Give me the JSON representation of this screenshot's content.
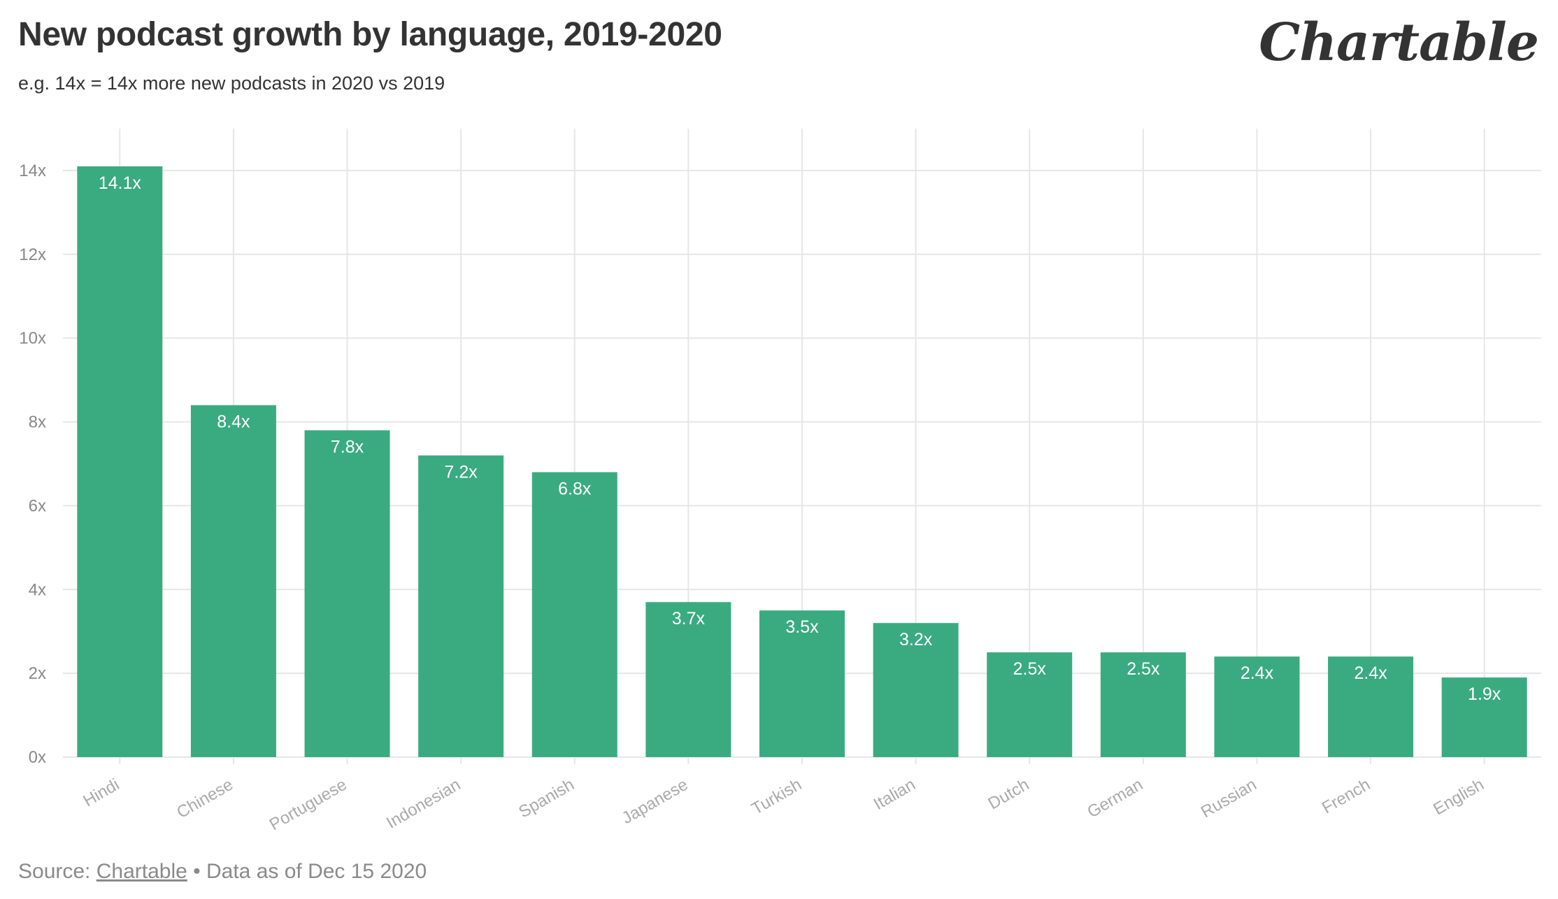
{
  "title": "New podcast growth by language, 2019-2020",
  "subtitle": "e.g. 14x = 14x more new podcasts in 2020 vs 2019",
  "logo_text": "Chartable",
  "footer": {
    "source_prefix": "Source: ",
    "source_link": "Chartable",
    "note": " • Data as of Dec 15 2020"
  },
  "colors": {
    "bar": "#3aab80",
    "grid": "#e6e6e6",
    "text": "#333333"
  },
  "chart_data": {
    "type": "bar",
    "title": "New podcast growth by language, 2019-2020",
    "subtitle": "e.g. 14x = 14x more new podcasts in 2020 vs 2019",
    "xlabel": "",
    "ylabel": "",
    "categories": [
      "Hindi",
      "Chinese",
      "Portuguese",
      "Indonesian",
      "Spanish",
      "Japanese",
      "Turkish",
      "Italian",
      "Dutch",
      "German",
      "Russian",
      "French",
      "English"
    ],
    "values": [
      14.1,
      8.4,
      7.8,
      7.2,
      6.8,
      3.7,
      3.5,
      3.2,
      2.5,
      2.5,
      2.4,
      2.4,
      1.9
    ],
    "data_labels": [
      "14.1x",
      "8.4x",
      "7.8x",
      "7.2x",
      "6.8x",
      "3.7x",
      "3.5x",
      "3.2x",
      "2.5x",
      "2.5x",
      "2.4x",
      "2.4x",
      "1.9x"
    ],
    "ylim": [
      0,
      15
    ],
    "yticks": [
      0,
      2,
      4,
      6,
      8,
      10,
      12,
      14
    ],
    "ytick_labels": [
      "0x",
      "2x",
      "4x",
      "6x",
      "8x",
      "10x",
      "12x",
      "14x"
    ],
    "grid": true,
    "legend": "none"
  }
}
